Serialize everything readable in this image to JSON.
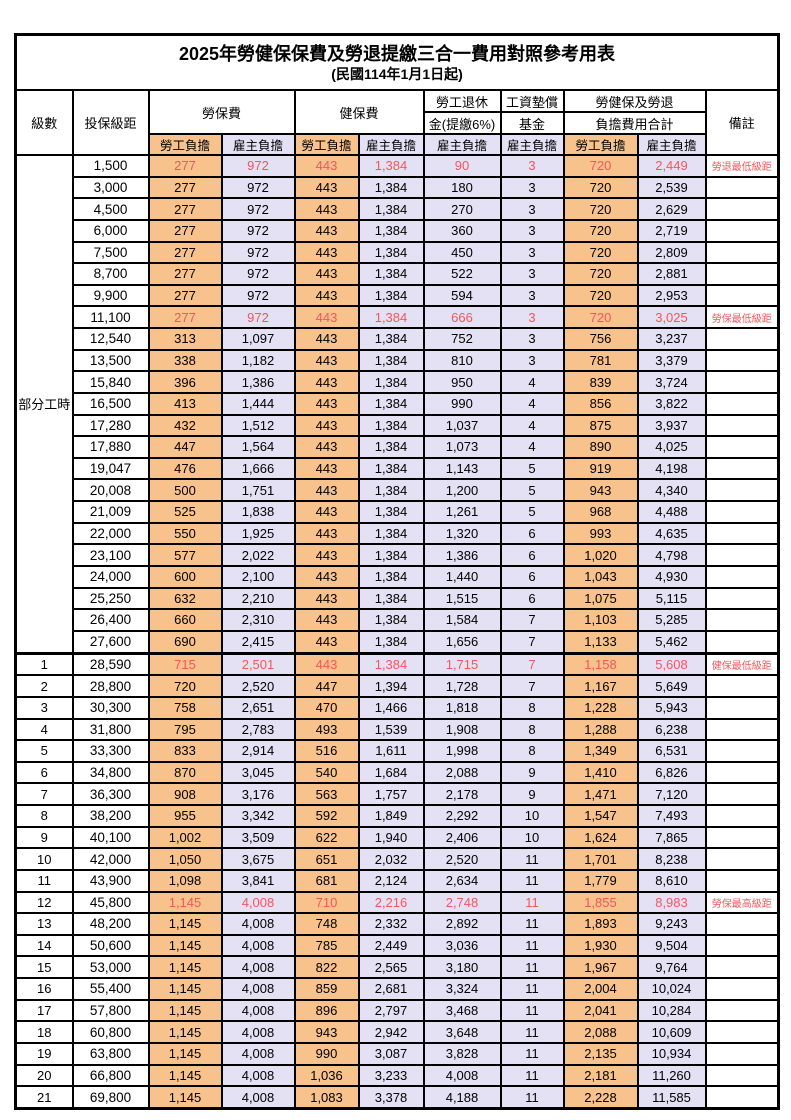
{
  "title": "2025年勞健保保費及勞退提繳三合一費用對照參考用表",
  "subtitle": "(民國114年1月1日起)",
  "header": {
    "level": "級數",
    "bracket": "投保級距",
    "labor_insurance": "勞保費",
    "health_insurance": "健保費",
    "pension_line1": "勞工退休",
    "pension_line2": "金(提繳6%)",
    "wage_fund_line1": "工資墊償",
    "wage_fund_line2": "基金",
    "total_line1": "勞健保及勞退",
    "total_line2": "負擔費用合計",
    "remark": "備註",
    "employee_share": "勞工負擔",
    "employer_share": "雇主負擔"
  },
  "part_time_label": "部分工時",
  "colors": {
    "employee_col_bg": "#F8C28C",
    "employer_col_bg": "#E3E1F3",
    "highlight_red": "#F4565C",
    "border": "#000000",
    "page_bg": "#FFFFFF"
  },
  "layout": {
    "part_time_rowspan": 23,
    "thick_separator_index": 23
  },
  "red_row_indexes": [
    0,
    7,
    23,
    34
  ],
  "row_columns": [
    "level",
    "bracket",
    "labor_emp",
    "labor_er",
    "health_emp",
    "health_er",
    "pension_er",
    "wage_fund_er",
    "total_emp",
    "total_er",
    "remark"
  ],
  "rows": [
    [
      "",
      "1,500",
      "277",
      "972",
      "443",
      "1,384",
      "90",
      "3",
      "720",
      "2,449",
      "勞退最低級距"
    ],
    [
      "",
      "3,000",
      "277",
      "972",
      "443",
      "1,384",
      "180",
      "3",
      "720",
      "2,539",
      ""
    ],
    [
      "",
      "4,500",
      "277",
      "972",
      "443",
      "1,384",
      "270",
      "3",
      "720",
      "2,629",
      ""
    ],
    [
      "",
      "6,000",
      "277",
      "972",
      "443",
      "1,384",
      "360",
      "3",
      "720",
      "2,719",
      ""
    ],
    [
      "",
      "7,500",
      "277",
      "972",
      "443",
      "1,384",
      "450",
      "3",
      "720",
      "2,809",
      ""
    ],
    [
      "",
      "8,700",
      "277",
      "972",
      "443",
      "1,384",
      "522",
      "3",
      "720",
      "2,881",
      ""
    ],
    [
      "",
      "9,900",
      "277",
      "972",
      "443",
      "1,384",
      "594",
      "3",
      "720",
      "2,953",
      ""
    ],
    [
      "",
      "11,100",
      "277",
      "972",
      "443",
      "1,384",
      "666",
      "3",
      "720",
      "3,025",
      "勞保最低級距"
    ],
    [
      "",
      "12,540",
      "313",
      "1,097",
      "443",
      "1,384",
      "752",
      "3",
      "756",
      "3,237",
      ""
    ],
    [
      "",
      "13,500",
      "338",
      "1,182",
      "443",
      "1,384",
      "810",
      "3",
      "781",
      "3,379",
      ""
    ],
    [
      "",
      "15,840",
      "396",
      "1,386",
      "443",
      "1,384",
      "950",
      "4",
      "839",
      "3,724",
      ""
    ],
    [
      "",
      "16,500",
      "413",
      "1,444",
      "443",
      "1,384",
      "990",
      "4",
      "856",
      "3,822",
      ""
    ],
    [
      "",
      "17,280",
      "432",
      "1,512",
      "443",
      "1,384",
      "1,037",
      "4",
      "875",
      "3,937",
      ""
    ],
    [
      "",
      "17,880",
      "447",
      "1,564",
      "443",
      "1,384",
      "1,073",
      "4",
      "890",
      "4,025",
      ""
    ],
    [
      "",
      "19,047",
      "476",
      "1,666",
      "443",
      "1,384",
      "1,143",
      "5",
      "919",
      "4,198",
      ""
    ],
    [
      "",
      "20,008",
      "500",
      "1,751",
      "443",
      "1,384",
      "1,200",
      "5",
      "943",
      "4,340",
      ""
    ],
    [
      "",
      "21,009",
      "525",
      "1,838",
      "443",
      "1,384",
      "1,261",
      "5",
      "968",
      "4,488",
      ""
    ],
    [
      "",
      "22,000",
      "550",
      "1,925",
      "443",
      "1,384",
      "1,320",
      "6",
      "993",
      "4,635",
      ""
    ],
    [
      "",
      "23,100",
      "577",
      "2,022",
      "443",
      "1,384",
      "1,386",
      "6",
      "1,020",
      "4,798",
      ""
    ],
    [
      "",
      "24,000",
      "600",
      "2,100",
      "443",
      "1,384",
      "1,440",
      "6",
      "1,043",
      "4,930",
      ""
    ],
    [
      "",
      "25,250",
      "632",
      "2,210",
      "443",
      "1,384",
      "1,515",
      "6",
      "1,075",
      "5,115",
      ""
    ],
    [
      "",
      "26,400",
      "660",
      "2,310",
      "443",
      "1,384",
      "1,584",
      "7",
      "1,103",
      "5,285",
      ""
    ],
    [
      "",
      "27,600",
      "690",
      "2,415",
      "443",
      "1,384",
      "1,656",
      "7",
      "1,133",
      "5,462",
      ""
    ],
    [
      "1",
      "28,590",
      "715",
      "2,501",
      "443",
      "1,384",
      "1,715",
      "7",
      "1,158",
      "5,608",
      "健保最低級距"
    ],
    [
      "2",
      "28,800",
      "720",
      "2,520",
      "447",
      "1,394",
      "1,728",
      "7",
      "1,167",
      "5,649",
      ""
    ],
    [
      "3",
      "30,300",
      "758",
      "2,651",
      "470",
      "1,466",
      "1,818",
      "8",
      "1,228",
      "5,943",
      ""
    ],
    [
      "4",
      "31,800",
      "795",
      "2,783",
      "493",
      "1,539",
      "1,908",
      "8",
      "1,288",
      "6,238",
      ""
    ],
    [
      "5",
      "33,300",
      "833",
      "2,914",
      "516",
      "1,611",
      "1,998",
      "8",
      "1,349",
      "6,531",
      ""
    ],
    [
      "6",
      "34,800",
      "870",
      "3,045",
      "540",
      "1,684",
      "2,088",
      "9",
      "1,410",
      "6,826",
      ""
    ],
    [
      "7",
      "36,300",
      "908",
      "3,176",
      "563",
      "1,757",
      "2,178",
      "9",
      "1,471",
      "7,120",
      ""
    ],
    [
      "8",
      "38,200",
      "955",
      "3,342",
      "592",
      "1,849",
      "2,292",
      "10",
      "1,547",
      "7,493",
      ""
    ],
    [
      "9",
      "40,100",
      "1,002",
      "3,509",
      "622",
      "1,940",
      "2,406",
      "10",
      "1,624",
      "7,865",
      ""
    ],
    [
      "10",
      "42,000",
      "1,050",
      "3,675",
      "651",
      "2,032",
      "2,520",
      "11",
      "1,701",
      "8,238",
      ""
    ],
    [
      "11",
      "43,900",
      "1,098",
      "3,841",
      "681",
      "2,124",
      "2,634",
      "11",
      "1,779",
      "8,610",
      ""
    ],
    [
      "12",
      "45,800",
      "1,145",
      "4,008",
      "710",
      "2,216",
      "2,748",
      "11",
      "1,855",
      "8,983",
      "勞保最高級距"
    ],
    [
      "13",
      "48,200",
      "1,145",
      "4,008",
      "748",
      "2,332",
      "2,892",
      "11",
      "1,893",
      "9,243",
      ""
    ],
    [
      "14",
      "50,600",
      "1,145",
      "4,008",
      "785",
      "2,449",
      "3,036",
      "11",
      "1,930",
      "9,504",
      ""
    ],
    [
      "15",
      "53,000",
      "1,145",
      "4,008",
      "822",
      "2,565",
      "3,180",
      "11",
      "1,967",
      "9,764",
      ""
    ],
    [
      "16",
      "55,400",
      "1,145",
      "4,008",
      "859",
      "2,681",
      "3,324",
      "11",
      "2,004",
      "10,024",
      ""
    ],
    [
      "17",
      "57,800",
      "1,145",
      "4,008",
      "896",
      "2,797",
      "3,468",
      "11",
      "2,041",
      "10,284",
      ""
    ],
    [
      "18",
      "60,800",
      "1,145",
      "4,008",
      "943",
      "2,942",
      "3,648",
      "11",
      "2,088",
      "10,609",
      ""
    ],
    [
      "19",
      "63,800",
      "1,145",
      "4,008",
      "990",
      "3,087",
      "3,828",
      "11",
      "2,135",
      "10,934",
      ""
    ],
    [
      "20",
      "66,800",
      "1,145",
      "4,008",
      "1,036",
      "3,233",
      "4,008",
      "11",
      "2,181",
      "11,260",
      ""
    ],
    [
      "21",
      "69,800",
      "1,145",
      "4,008",
      "1,083",
      "3,378",
      "4,188",
      "11",
      "2,228",
      "11,585",
      ""
    ]
  ]
}
